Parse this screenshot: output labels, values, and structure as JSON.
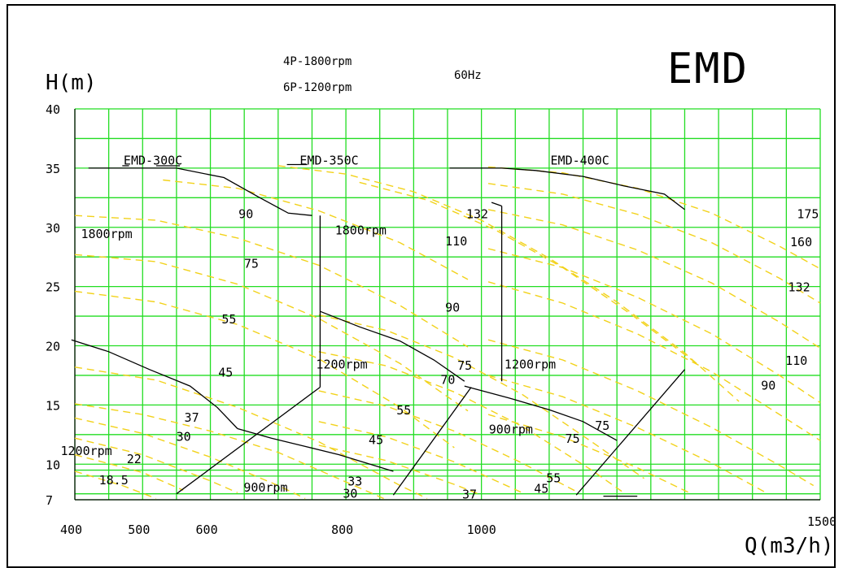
{
  "chart_data": {
    "type": "line",
    "brand": "EMD",
    "poles": [
      "4P-1800rpm",
      "6P-1200rpm"
    ],
    "frequency": "60Hz",
    "ylabel": "H(m)",
    "xlabel": "Q(m3/h)",
    "xlim": [
      400,
      1500
    ],
    "ylim": [
      7,
      40
    ],
    "x_ticks": [
      400,
      500,
      600,
      800,
      1000,
      1500
    ],
    "x_tick_labels": [
      "400",
      "500",
      "600",
      "800",
      "1000",
      "1500"
    ],
    "y_ticks": [
      7,
      10,
      15,
      20,
      25,
      30,
      35,
      40
    ],
    "y_tick_labels": [
      "7",
      "10",
      "15",
      "20",
      "25",
      "30",
      "35",
      "40"
    ],
    "grid": true,
    "colors": {
      "grid": "#22dd22",
      "frame": "#000000",
      "power_curve": "#f2d21a",
      "pump_curve": "#000000"
    },
    "models": [
      {
        "name": "EMD-300C",
        "at": [
          520,
          35.7
        ]
      },
      {
        "name": "EMD-350C",
        "at": [
          780,
          35.7
        ]
      },
      {
        "name": "EMD-400C",
        "at": [
          1150,
          35.7
        ]
      }
    ],
    "speed_labels": [
      {
        "text": "1800rpm",
        "at": [
          445,
          29.5
        ]
      },
      {
        "text": "1800rpm",
        "at": [
          820,
          29.8
        ]
      },
      {
        "text": "1200rpm",
        "at": [
          415,
          11.2
        ]
      },
      {
        "text": "1200rpm",
        "at": [
          792,
          18.5
        ]
      },
      {
        "text": "1200rpm",
        "at": [
          1070,
          18.5
        ]
      },
      {
        "text": "900rpm",
        "at": [
          685,
          8.1
        ]
      },
      {
        "text": "900rpm",
        "at": [
          1047,
          13.0
        ]
      }
    ],
    "power_labels": [
      {
        "text": "90",
        "at": [
          656,
          31.2
        ]
      },
      {
        "text": "75",
        "at": [
          664,
          27.0
        ]
      },
      {
        "text": "55",
        "at": [
          631,
          22.3
        ]
      },
      {
        "text": "45",
        "at": [
          626,
          17.8
        ]
      },
      {
        "text": "37",
        "at": [
          576,
          14.0
        ]
      },
      {
        "text": "30",
        "at": [
          564,
          12.4
        ]
      },
      {
        "text": "22",
        "at": [
          491,
          10.5
        ]
      },
      {
        "text": "18.5",
        "at": [
          450,
          8.7
        ]
      },
      {
        "text": "132",
        "at": [
          992,
          31.2
        ]
      },
      {
        "text": "110",
        "at": [
          961,
          28.9
        ]
      },
      {
        "text": "90",
        "at": [
          961,
          23.3
        ]
      },
      {
        "text": "75",
        "at": [
          979,
          18.4
        ]
      },
      {
        "text": "70",
        "at": [
          954,
          17.2
        ]
      },
      {
        "text": "55",
        "at": [
          889,
          14.6
        ]
      },
      {
        "text": "45",
        "at": [
          848,
          12.1
        ]
      },
      {
        "text": "33",
        "at": [
          817,
          8.6
        ]
      },
      {
        "text": "30",
        "at": [
          810,
          7.6
        ]
      },
      {
        "text": "37",
        "at": [
          986,
          7.5
        ]
      },
      {
        "text": "55",
        "at": [
          1110,
          8.9
        ]
      },
      {
        "text": "45",
        "at": [
          1092,
          8.0
        ]
      },
      {
        "text": "75",
        "at": [
          1138,
          12.2
        ]
      },
      {
        "text": "75",
        "at": [
          1182,
          13.3
        ]
      },
      {
        "text": "175",
        "at": [
          1480,
          31.2
        ]
      },
      {
        "text": "160",
        "at": [
          1470,
          28.8
        ]
      },
      {
        "text": "132",
        "at": [
          1467,
          25.0
        ]
      },
      {
        "text": "110",
        "at": [
          1463,
          18.8
        ]
      },
      {
        "text": "90",
        "at": [
          1427,
          16.7
        ]
      }
    ],
    "series": [
      {
        "points": [
          [
            420,
            35.0
          ],
          [
            550,
            35.0
          ],
          [
            620,
            34.2
          ],
          [
            670,
            32.6
          ],
          [
            715,
            31.2
          ],
          [
            750,
            31.0
          ]
        ]
      },
      {
        "points": [
          [
            470,
            35.2
          ],
          [
            480,
            35.2
          ]
        ]
      },
      {
        "points": [
          [
            713,
            35.3
          ],
          [
            743,
            35.3
          ]
        ]
      },
      {
        "points": [
          [
            953,
            35.0
          ],
          [
            1030,
            35.0
          ],
          [
            1080,
            34.8
          ],
          [
            1150,
            34.3
          ],
          [
            1210,
            33.5
          ],
          [
            1270,
            32.8
          ],
          [
            1300,
            31.5
          ]
        ]
      },
      {
        "points": [
          [
            395,
            20.5
          ],
          [
            450,
            19.5
          ],
          [
            510,
            18.0
          ],
          [
            570,
            16.6
          ],
          [
            610,
            14.8
          ],
          [
            640,
            13.0
          ]
        ]
      },
      {
        "points": [
          [
            640,
            13.0
          ],
          [
            690,
            12.2
          ],
          [
            740,
            11.5
          ],
          [
            790,
            10.8
          ],
          [
            870,
            9.4
          ]
        ]
      },
      {
        "points": [
          [
            762,
            22.9
          ],
          [
            820,
            21.6
          ],
          [
            880,
            20.4
          ],
          [
            930,
            18.8
          ],
          [
            975,
            17.0
          ]
        ]
      },
      {
        "points": [
          [
            975,
            16.6
          ],
          [
            1040,
            15.6
          ],
          [
            1100,
            14.6
          ],
          [
            1150,
            13.6
          ],
          [
            1200,
            12.0
          ]
        ]
      },
      {
        "points": [
          [
            1015,
            32.1
          ],
          [
            1030,
            31.8
          ]
        ]
      },
      {
        "points": [
          [
            1030,
            31.8
          ],
          [
            1030,
            17.0
          ]
        ]
      },
      {
        "points": [
          [
            762,
            31.0
          ],
          [
            762,
            16.5
          ]
        ]
      },
      {
        "points": [
          [
            550,
            7.5
          ],
          [
            762,
            16.5
          ]
        ]
      },
      {
        "points": [
          [
            870,
            7.4
          ],
          [
            985,
            16.5
          ]
        ]
      },
      {
        "points": [
          [
            1140,
            7.4
          ],
          [
            1300,
            18.0
          ]
        ]
      },
      {
        "points": [
          [
            1180,
            7.3
          ],
          [
            1230,
            7.3
          ]
        ]
      },
      {
        "points": [
          [
            520,
            35.2
          ],
          [
            555,
            35.2
          ]
        ]
      }
    ],
    "power_curves": [
      {
        "points": [
          [
            400,
            15.1
          ],
          [
            500,
            14.2
          ],
          [
            600,
            12.8
          ],
          [
            700,
            11.0
          ],
          [
            800,
            8.5
          ],
          [
            860,
            7.0
          ]
        ]
      },
      {
        "points": [
          [
            400,
            13.9
          ],
          [
            500,
            12.6
          ],
          [
            600,
            10.6
          ],
          [
            700,
            8.2
          ],
          [
            740,
            7.1
          ]
        ]
      },
      {
        "points": [
          [
            400,
            12.2
          ],
          [
            500,
            10.8
          ],
          [
            600,
            8.6
          ],
          [
            640,
            7.6
          ]
        ]
      },
      {
        "points": [
          [
            400,
            10.8
          ],
          [
            500,
            9.3
          ],
          [
            560,
            7.8
          ]
        ]
      },
      {
        "points": [
          [
            400,
            9.4
          ],
          [
            470,
            8.2
          ],
          [
            520,
            7.1
          ]
        ]
      },
      {
        "points": [
          [
            400,
            18.2
          ],
          [
            520,
            17.1
          ],
          [
            640,
            14.8
          ],
          [
            760,
            11.9
          ],
          [
            880,
            8.2
          ],
          [
            920,
            7.1
          ]
        ]
      },
      {
        "points": [
          [
            400,
            24.6
          ],
          [
            520,
            23.7
          ],
          [
            640,
            21.8
          ],
          [
            760,
            18.9
          ],
          [
            880,
            14.8
          ],
          [
            960,
            11.4
          ]
        ]
      },
      {
        "points": [
          [
            400,
            27.7
          ],
          [
            520,
            27.1
          ],
          [
            640,
            25.2
          ],
          [
            760,
            22.3
          ],
          [
            880,
            18.5
          ],
          [
            980,
            14.5
          ]
        ]
      },
      {
        "points": [
          [
            400,
            31.0
          ],
          [
            520,
            30.6
          ],
          [
            640,
            29.1
          ],
          [
            760,
            26.8
          ],
          [
            880,
            23.4
          ],
          [
            980,
            19.9
          ]
        ]
      },
      {
        "points": [
          [
            530,
            34.0
          ],
          [
            640,
            33.3
          ],
          [
            760,
            31.4
          ],
          [
            880,
            28.7
          ],
          [
            980,
            25.6
          ]
        ]
      },
      {
        "points": [
          [
            700,
            35.2
          ],
          [
            800,
            34.5
          ],
          [
            900,
            33.0
          ],
          [
            1000,
            30.6
          ],
          [
            1100,
            27.4
          ],
          [
            1200,
            23.7
          ],
          [
            1300,
            19.4
          ],
          [
            1380,
            15.3
          ]
        ]
      },
      {
        "points": [
          [
            820,
            33.8
          ],
          [
            920,
            32.3
          ],
          [
            1020,
            29.8
          ],
          [
            1120,
            26.6
          ],
          [
            1220,
            22.7
          ],
          [
            1320,
            18.4
          ]
        ]
      },
      {
        "points": [
          [
            760,
            22.6
          ],
          [
            860,
            21.3
          ],
          [
            960,
            19.0
          ],
          [
            1060,
            15.9
          ],
          [
            1160,
            12.0
          ],
          [
            1240,
            8.8
          ]
        ]
      },
      {
        "points": [
          [
            760,
            19.5
          ],
          [
            860,
            18.3
          ],
          [
            960,
            16.1
          ],
          [
            1060,
            13.2
          ],
          [
            1160,
            9.6
          ],
          [
            1210,
            7.6
          ]
        ]
      },
      {
        "points": [
          [
            760,
            16.2
          ],
          [
            860,
            14.9
          ],
          [
            960,
            12.8
          ],
          [
            1060,
            10.1
          ],
          [
            1140,
            7.7
          ]
        ]
      },
      {
        "points": [
          [
            760,
            13.6
          ],
          [
            860,
            12.3
          ],
          [
            960,
            10.2
          ],
          [
            1060,
            7.6
          ]
        ]
      },
      {
        "points": [
          [
            760,
            11.6
          ],
          [
            860,
            10.3
          ],
          [
            960,
            8.3
          ],
          [
            1000,
            7.4
          ]
        ]
      },
      {
        "points": [
          [
            1010,
            35.1
          ],
          [
            1120,
            34.6
          ],
          [
            1230,
            33.3
          ],
          [
            1340,
            31.2
          ],
          [
            1440,
            28.4
          ],
          [
            1500,
            26.5
          ]
        ]
      },
      {
        "points": [
          [
            1010,
            33.7
          ],
          [
            1120,
            32.8
          ],
          [
            1230,
            31.1
          ],
          [
            1340,
            28.7
          ],
          [
            1440,
            25.7
          ],
          [
            1500,
            23.6
          ]
        ]
      },
      {
        "points": [
          [
            1010,
            31.5
          ],
          [
            1120,
            30.2
          ],
          [
            1230,
            28.1
          ],
          [
            1340,
            25.3
          ],
          [
            1440,
            22.0
          ],
          [
            1500,
            19.8
          ]
        ]
      },
      {
        "points": [
          [
            1010,
            28.2
          ],
          [
            1120,
            26.6
          ],
          [
            1230,
            24.1
          ],
          [
            1340,
            21.0
          ],
          [
            1440,
            17.5
          ],
          [
            1500,
            15.2
          ]
        ]
      },
      {
        "points": [
          [
            1010,
            25.4
          ],
          [
            1120,
            23.6
          ],
          [
            1230,
            21.0
          ],
          [
            1340,
            17.8
          ],
          [
            1440,
            14.2
          ],
          [
            1500,
            12.0
          ]
        ]
      },
      {
        "points": [
          [
            1010,
            20.5
          ],
          [
            1120,
            18.8
          ],
          [
            1230,
            16.2
          ],
          [
            1340,
            13.1
          ],
          [
            1440,
            9.9
          ],
          [
            1490,
            8.2
          ]
        ]
      },
      {
        "points": [
          [
            1010,
            17.5
          ],
          [
            1120,
            15.7
          ],
          [
            1230,
            13.1
          ],
          [
            1340,
            10.1
          ],
          [
            1420,
            7.6
          ]
        ]
      },
      {
        "points": [
          [
            1010,
            14.2
          ],
          [
            1120,
            12.3
          ],
          [
            1230,
            9.7
          ],
          [
            1310,
            7.5
          ]
        ]
      }
    ]
  }
}
